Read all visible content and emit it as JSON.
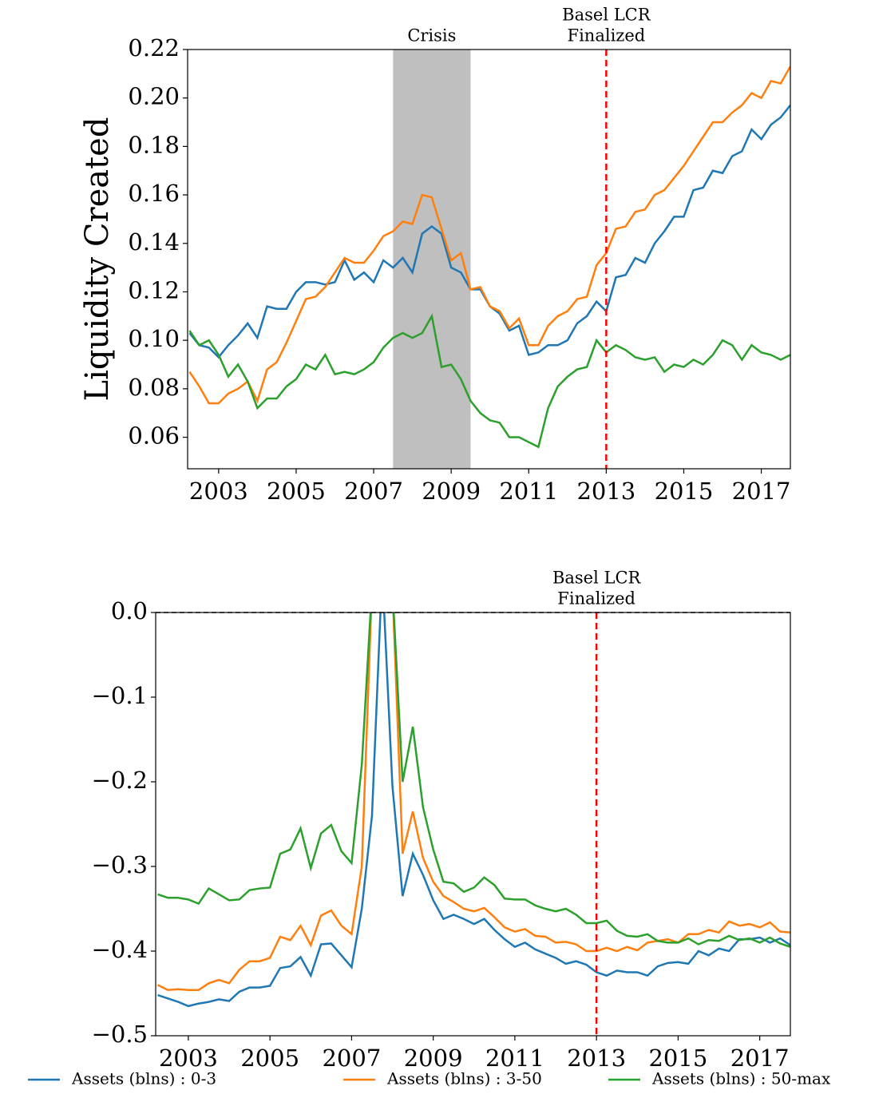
{
  "chart_data": [
    {
      "type": "line",
      "ylabel": "Liquidity Created",
      "x": [
        2002.25,
        2002.5,
        2002.75,
        2003,
        2003.25,
        2003.5,
        2003.75,
        2004,
        2004.25,
        2004.5,
        2004.75,
        2005,
        2005.25,
        2005.5,
        2005.75,
        2006,
        2006.25,
        2006.5,
        2006.75,
        2007,
        2007.25,
        2007.5,
        2007.75,
        2008,
        2008.25,
        2008.5,
        2008.75,
        2009,
        2009.25,
        2009.5,
        2009.75,
        2010,
        2010.25,
        2010.5,
        2010.75,
        2011,
        2011.25,
        2011.5,
        2011.75,
        2012,
        2012.25,
        2012.5,
        2012.75,
        2013,
        2013.25,
        2013.5,
        2013.75,
        2014,
        2014.25,
        2014.5,
        2014.75,
        2015,
        2015.25,
        2015.5,
        2015.75,
        2016,
        2016.25,
        2016.5,
        2016.75,
        2017,
        2017.25,
        2017.5,
        2017.75
      ],
      "series": [
        {
          "name": "Assets (blns) : 0-3",
          "color": "#1f77b4",
          "values": [
            0.103,
            0.098,
            0.097,
            0.093,
            0.098,
            0.102,
            0.107,
            0.101,
            0.114,
            0.113,
            0.113,
            0.12,
            0.124,
            0.124,
            0.123,
            0.124,
            0.133,
            0.125,
            0.128,
            0.124,
            0.133,
            0.13,
            0.134,
            0.128,
            0.144,
            0.147,
            0.144,
            0.13,
            0.128,
            0.121,
            0.121,
            0.114,
            0.111,
            0.104,
            0.106,
            0.094,
            0.095,
            0.098,
            0.098,
            0.1,
            0.107,
            0.11,
            0.116,
            0.112,
            0.126,
            0.127,
            0.134,
            0.132,
            0.14,
            0.145,
            0.151,
            0.151,
            0.162,
            0.163,
            0.17,
            0.169,
            0.176,
            0.178,
            0.187,
            0.183,
            0.189,
            0.192,
            0.197
          ]
        },
        {
          "name": "Assets (blns) : 3-50",
          "color": "#ff7f0e",
          "values": [
            0.087,
            0.081,
            0.074,
            0.074,
            0.078,
            0.08,
            0.083,
            0.075,
            0.088,
            0.091,
            0.099,
            0.108,
            0.117,
            0.118,
            0.122,
            0.128,
            0.134,
            0.132,
            0.132,
            0.137,
            0.143,
            0.145,
            0.149,
            0.148,
            0.16,
            0.159,
            0.146,
            0.133,
            0.136,
            0.121,
            0.122,
            0.114,
            0.112,
            0.105,
            0.109,
            0.098,
            0.098,
            0.106,
            0.11,
            0.112,
            0.117,
            0.118,
            0.131,
            0.136,
            0.146,
            0.147,
            0.153,
            0.154,
            0.16,
            0.162,
            0.167,
            0.172,
            0.178,
            0.184,
            0.19,
            0.19,
            0.194,
            0.197,
            0.202,
            0.2,
            0.207,
            0.206,
            0.213
          ]
        },
        {
          "name": "Assets (blns) : 50-max",
          "color": "#2ca02c",
          "values": [
            0.104,
            0.098,
            0.1,
            0.094,
            0.085,
            0.09,
            0.083,
            0.072,
            0.076,
            0.076,
            0.081,
            0.084,
            0.09,
            0.088,
            0.094,
            0.086,
            0.087,
            0.086,
            0.088,
            0.091,
            0.097,
            0.101,
            0.103,
            0.101,
            0.103,
            0.11,
            0.089,
            0.09,
            0.084,
            0.075,
            0.07,
            0.067,
            0.066,
            0.06,
            0.06,
            0.058,
            0.056,
            0.072,
            0.081,
            0.085,
            0.088,
            0.089,
            0.1,
            0.095,
            0.098,
            0.096,
            0.093,
            0.092,
            0.093,
            0.087,
            0.09,
            0.089,
            0.092,
            0.09,
            0.094,
            0.1,
            0.098,
            0.092,
            0.098,
            0.095,
            0.094,
            0.092,
            0.094
          ]
        }
      ],
      "xlim": [
        2002.2,
        2017.75
      ],
      "xticks": [
        2003,
        2005,
        2007,
        2009,
        2011,
        2013,
        2015,
        2017
      ],
      "ylim": [
        0.047,
        0.22
      ],
      "yticks": [
        0.06,
        0.08,
        {
          "value": 0.1,
          "label": "0.10"
        },
        0.12,
        0.14,
        0.16,
        0.18,
        {
          "value": 0.2,
          "label": "0.20"
        },
        0.22
      ],
      "shaded_regions": [
        {
          "x": [
            2007.5,
            2009.5
          ],
          "label": "Crisis",
          "color": "#bfbfbf"
        }
      ],
      "vlines": [
        {
          "x": 2013,
          "label": [
            "Basel LCR",
            "Finalized"
          ],
          "color": "#ff0000"
        }
      ]
    },
    {
      "type": "line",
      "x": [
        2002.25,
        2002.5,
        2002.75,
        2003,
        2003.25,
        2003.5,
        2003.75,
        2004,
        2004.25,
        2004.5,
        2004.75,
        2005,
        2005.25,
        2005.5,
        2005.75,
        2006,
        2006.25,
        2006.5,
        2006.75,
        2007,
        2007.25,
        2007.5,
        2007.75,
        2008,
        2008.25,
        2008.5,
        2008.75,
        2009,
        2009.25,
        2009.5,
        2009.75,
        2010,
        2010.25,
        2010.5,
        2010.75,
        2011,
        2011.25,
        2011.5,
        2011.75,
        2012,
        2012.25,
        2012.5,
        2012.75,
        2013,
        2013.25,
        2013.5,
        2013.75,
        2014,
        2014.25,
        2014.5,
        2014.75,
        2015,
        2015.25,
        2015.5,
        2015.75,
        2016,
        2016.25,
        2016.5,
        2016.75,
        2017,
        2017.25,
        2017.5,
        2017.75
      ],
      "series": [
        {
          "color": "#1f77b4",
          "values": [
            -0.452,
            -0.456,
            -0.46,
            -0.465,
            -0.462,
            -0.46,
            -0.457,
            -0.459,
            -0.448,
            -0.443,
            -0.443,
            -0.441,
            -0.42,
            -0.418,
            -0.407,
            -0.429,
            -0.392,
            -0.391,
            -0.405,
            -0.419,
            -0.35,
            -0.24,
            0.05,
            -0.205,
            -0.335,
            -0.285,
            -0.31,
            -0.34,
            -0.362,
            -0.357,
            -0.362,
            -0.368,
            -0.362,
            -0.375,
            -0.386,
            -0.395,
            -0.39,
            -0.398,
            -0.403,
            -0.408,
            -0.415,
            -0.412,
            -0.416,
            -0.425,
            -0.429,
            -0.423,
            -0.425,
            -0.425,
            -0.429,
            -0.418,
            -0.414,
            -0.413,
            -0.415,
            -0.4,
            -0.405,
            -0.397,
            -0.4,
            -0.386,
            -0.386,
            -0.384,
            -0.39,
            -0.385,
            -0.393
          ]
        },
        {
          "color": "#ff7f0e",
          "values": [
            -0.44,
            -0.446,
            -0.445,
            -0.446,
            -0.446,
            -0.438,
            -0.434,
            -0.438,
            -0.422,
            -0.412,
            -0.412,
            -0.408,
            -0.383,
            -0.387,
            -0.37,
            -0.393,
            -0.358,
            -0.352,
            -0.37,
            -0.38,
            -0.3,
            0.03,
            0.05,
            0.03,
            -0.285,
            -0.235,
            -0.29,
            -0.318,
            -0.335,
            -0.342,
            -0.35,
            -0.353,
            -0.349,
            -0.36,
            -0.372,
            -0.377,
            -0.374,
            -0.382,
            -0.383,
            -0.39,
            -0.389,
            -0.392,
            -0.4,
            -0.4,
            -0.396,
            -0.4,
            -0.395,
            -0.399,
            -0.39,
            -0.388,
            -0.386,
            -0.39,
            -0.38,
            -0.38,
            -0.375,
            -0.378,
            -0.365,
            -0.37,
            -0.368,
            -0.372,
            -0.366,
            -0.377,
            -0.378
          ]
        },
        {
          "color": "#2ca02c",
          "values": [
            -0.333,
            -0.337,
            -0.337,
            -0.339,
            -0.344,
            -0.326,
            -0.333,
            -0.34,
            -0.339,
            -0.328,
            -0.326,
            -0.325,
            -0.285,
            -0.28,
            -0.255,
            -0.302,
            -0.261,
            -0.251,
            -0.282,
            -0.296,
            -0.18,
            0.03,
            0.05,
            0.03,
            -0.2,
            -0.135,
            -0.23,
            -0.28,
            -0.318,
            -0.32,
            -0.33,
            -0.325,
            -0.313,
            -0.322,
            -0.338,
            -0.339,
            -0.339,
            -0.346,
            -0.35,
            -0.353,
            -0.35,
            -0.357,
            -0.367,
            -0.367,
            -0.364,
            -0.376,
            -0.382,
            -0.383,
            -0.38,
            -0.388,
            -0.39,
            -0.39,
            -0.385,
            -0.392,
            -0.387,
            -0.388,
            -0.382,
            -0.387,
            -0.385,
            -0.39,
            -0.384,
            -0.391,
            -0.395
          ]
        }
      ],
      "xlim": [
        2002.2,
        2017.75
      ],
      "xticks": [
        2003,
        2005,
        2007,
        2009,
        2011,
        2013,
        2015,
        2017
      ],
      "ylim": [
        -0.5,
        0
      ],
      "yticks": [
        {
          "value": -0.5,
          "label": "−0.5"
        },
        {
          "value": -0.4,
          "label": "−0.4"
        },
        {
          "value": -0.3,
          "label": "−0.3"
        },
        {
          "value": -0.2,
          "label": "−0.2"
        },
        {
          "value": -0.1,
          "label": "−0.1"
        },
        {
          "value": 0,
          "label": "0.0"
        }
      ],
      "vlines": [
        {
          "x": 2013,
          "label": [
            "Basel LCR",
            "Finalized"
          ],
          "color": "#ff0000"
        }
      ],
      "hlines": [
        {
          "y": 0,
          "color": "#000000"
        }
      ]
    }
  ]
}
